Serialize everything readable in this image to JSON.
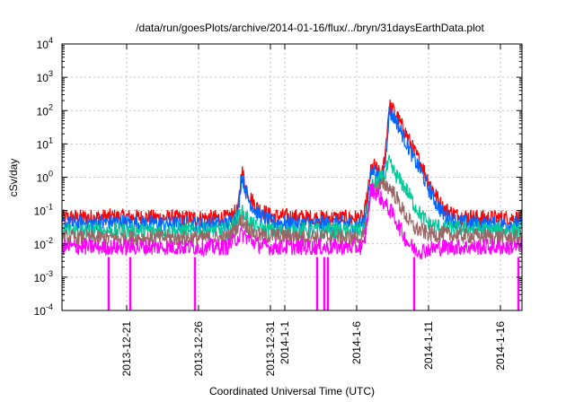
{
  "chart_data": {
    "type": "line",
    "title": "/data/run/goesPlots/archive/2014-01-16/flux/../bryn/31daysEarthData.plot",
    "xlabel": "Coordinated Universal Time (UTC)",
    "ylabel": "cSv/day",
    "yscale": "log",
    "ylim": [
      0.0001,
      10000
    ],
    "xlim": [
      "2013-12-16T12:00",
      "2014-01-17T12:00"
    ],
    "grid": true,
    "y_ticks": [
      {
        "label": "10",
        "exp": "-4",
        "value": 0.0001
      },
      {
        "label": "10",
        "exp": "-3",
        "value": 0.001
      },
      {
        "label": "10",
        "exp": "-2",
        "value": 0.01
      },
      {
        "label": "10",
        "exp": "-1",
        "value": 0.1
      },
      {
        "label": "10",
        "exp": "0",
        "value": 1
      },
      {
        "label": "10",
        "exp": "1",
        "value": 10
      },
      {
        "label": "10",
        "exp": "2",
        "value": 100
      },
      {
        "label": "10",
        "exp": "3",
        "value": 1000
      },
      {
        "label": "10",
        "exp": "4",
        "value": 10000
      }
    ],
    "x_ticks": [
      {
        "label": "2013-12-21",
        "date": "2013-12-21"
      },
      {
        "label": "2013-12-26",
        "date": "2013-12-26"
      },
      {
        "label": "2013-12-31",
        "date": "2013-12-31"
      },
      {
        "label": "2014-1-1",
        "date": "2014-01-01"
      },
      {
        "label": "2014-1-6",
        "date": "2014-01-06"
      },
      {
        "label": "2014-1-11",
        "date": "2014-01-11"
      },
      {
        "label": "2014-1-16",
        "date": "2014-01-16"
      }
    ],
    "series": [
      {
        "color": "#ff0000",
        "x": [
          "2013-12-16T12:00",
          "2013-12-20T00:00",
          "2013-12-24T00:00",
          "2013-12-28T00:00",
          "2013-12-28T18:00",
          "2013-12-29T00:00",
          "2013-12-29T06:00",
          "2013-12-29T12:00",
          "2013-12-30T00:00",
          "2013-12-31T00:00",
          "2014-01-03T00:00",
          "2014-01-06T12:00",
          "2014-01-06T18:00",
          "2014-01-07T00:00",
          "2014-01-07T06:00",
          "2014-01-07T12:00",
          "2014-01-07T18:00",
          "2014-01-08T00:00",
          "2014-01-08T06:00",
          "2014-01-08T12:00",
          "2014-01-08T18:00",
          "2014-01-09T00:00",
          "2014-01-09T12:00",
          "2014-01-10T00:00",
          "2014-01-10T12:00",
          "2014-01-11T00:00",
          "2014-01-11T12:00",
          "2014-01-12T00:00",
          "2014-01-13T00:00",
          "2014-01-15T00:00",
          "2014-01-17T12:00"
        ],
        "y": [
          0.06,
          0.065,
          0.06,
          0.06,
          0.1,
          1.8,
          0.6,
          0.3,
          0.13,
          0.07,
          0.06,
          0.06,
          0.3,
          1.7,
          2.2,
          1.4,
          1.0,
          6.5,
          140,
          110,
          75,
          45,
          18,
          6,
          2.5,
          0.8,
          0.3,
          0.12,
          0.07,
          0.06,
          0.06
        ]
      },
      {
        "color": "#0066ff",
        "x": [
          "2013-12-16T12:00",
          "2013-12-20T00:00",
          "2013-12-24T00:00",
          "2013-12-28T00:00",
          "2013-12-28T18:00",
          "2013-12-29T00:00",
          "2013-12-29T06:00",
          "2013-12-29T12:00",
          "2013-12-30T00:00",
          "2013-12-31T00:00",
          "2014-01-03T00:00",
          "2014-01-06T12:00",
          "2014-01-06T18:00",
          "2014-01-07T00:00",
          "2014-01-07T06:00",
          "2014-01-07T12:00",
          "2014-01-07T18:00",
          "2014-01-08T00:00",
          "2014-01-08T06:00",
          "2014-01-08T12:00",
          "2014-01-08T18:00",
          "2014-01-09T00:00",
          "2014-01-09T12:00",
          "2014-01-10T00:00",
          "2014-01-10T12:00",
          "2014-01-11T00:00",
          "2014-01-11T12:00",
          "2014-01-12T00:00",
          "2014-01-13T00:00",
          "2014-01-15T00:00",
          "2014-01-17T12:00"
        ],
        "y": [
          0.04,
          0.045,
          0.04,
          0.04,
          0.08,
          1.2,
          0.45,
          0.2,
          0.09,
          0.045,
          0.04,
          0.04,
          0.22,
          1.3,
          1.8,
          1.1,
          0.7,
          3.0,
          90,
          70,
          50,
          28,
          10,
          3.5,
          1.4,
          0.45,
          0.18,
          0.08,
          0.045,
          0.04,
          0.04
        ]
      },
      {
        "color": "#00cc99",
        "x": [
          "2013-12-16T12:00",
          "2013-12-28T00:00",
          "2013-12-29T00:00",
          "2013-12-30T00:00",
          "2013-12-31T00:00",
          "2014-01-06T12:00",
          "2014-01-07T00:00",
          "2014-01-07T12:00",
          "2014-01-08T00:00",
          "2014-01-08T06:00",
          "2014-01-08T12:00",
          "2014-01-09T00:00",
          "2014-01-09T12:00",
          "2014-01-10T00:00",
          "2014-01-10T12:00",
          "2014-01-11T00:00",
          "2014-01-12T00:00",
          "2014-01-17T12:00"
        ],
        "y": [
          0.025,
          0.025,
          0.09,
          0.03,
          0.025,
          0.025,
          0.5,
          0.8,
          1.2,
          2.8,
          1.6,
          0.8,
          0.4,
          0.15,
          0.07,
          0.04,
          0.03,
          0.025
        ]
      },
      {
        "color": "#996666",
        "x": [
          "2013-12-16T12:00",
          "2013-12-28T00:00",
          "2013-12-29T00:00",
          "2013-12-30T00:00",
          "2014-01-06T12:00",
          "2014-01-07T00:00",
          "2014-01-07T12:00",
          "2014-01-08T00:00",
          "2014-01-08T12:00",
          "2014-01-09T00:00",
          "2014-01-09T12:00",
          "2014-01-10T00:00",
          "2014-01-11T00:00",
          "2014-01-17T12:00"
        ],
        "y": [
          0.015,
          0.015,
          0.05,
          0.018,
          0.015,
          0.35,
          0.5,
          0.6,
          0.4,
          0.15,
          0.06,
          0.03,
          0.02,
          0.015
        ]
      },
      {
        "color": "#ff00ff",
        "x": [
          "2013-12-16T12:00",
          "2013-12-20T00:00",
          "2013-12-24T00:00",
          "2013-12-28T00:00",
          "2013-12-29T00:00",
          "2013-12-30T00:00",
          "2013-12-31T00:00",
          "2014-01-03T00:00",
          "2014-01-06T12:00",
          "2014-01-07T00:00",
          "2014-01-07T12:00",
          "2014-01-08T00:00",
          "2014-01-08T12:00",
          "2014-01-09T00:00",
          "2014-01-09T12:00",
          "2014-01-10T00:00",
          "2014-01-10T12:00",
          "2014-01-11T00:00",
          "2014-01-12T00:00",
          "2014-01-17T12:00"
        ],
        "y": [
          0.008,
          0.008,
          0.008,
          0.008,
          0.02,
          0.01,
          0.008,
          0.008,
          0.008,
          0.45,
          0.3,
          0.15,
          0.08,
          0.03,
          0.012,
          0.007,
          0.006,
          0.007,
          0.008,
          0.008
        ]
      }
    ],
    "dropouts": [
      {
        "color": "#ff00ff",
        "x": "2013-12-19T18:00",
        "y": 0.0001
      },
      {
        "color": "#ff00ff",
        "x": "2013-12-21T06:00",
        "y": 0.0001
      },
      {
        "color": "#ff00ff",
        "x": "2013-12-25T18:00",
        "y": 0.0001
      },
      {
        "color": "#ff00ff",
        "x": "2014-01-03T06:00",
        "y": 0.0001
      },
      {
        "color": "#ff00ff",
        "x": "2014-01-03T18:00",
        "y": 0.0001
      },
      {
        "color": "#ff00ff",
        "x": "2014-01-04T00:00",
        "y": 0.0001
      },
      {
        "color": "#ff00ff",
        "x": "2014-01-10T00:00",
        "y": 0.0001
      },
      {
        "color": "#ff00ff",
        "x": "2014-01-17T06:00",
        "y": 0.0001
      }
    ]
  }
}
